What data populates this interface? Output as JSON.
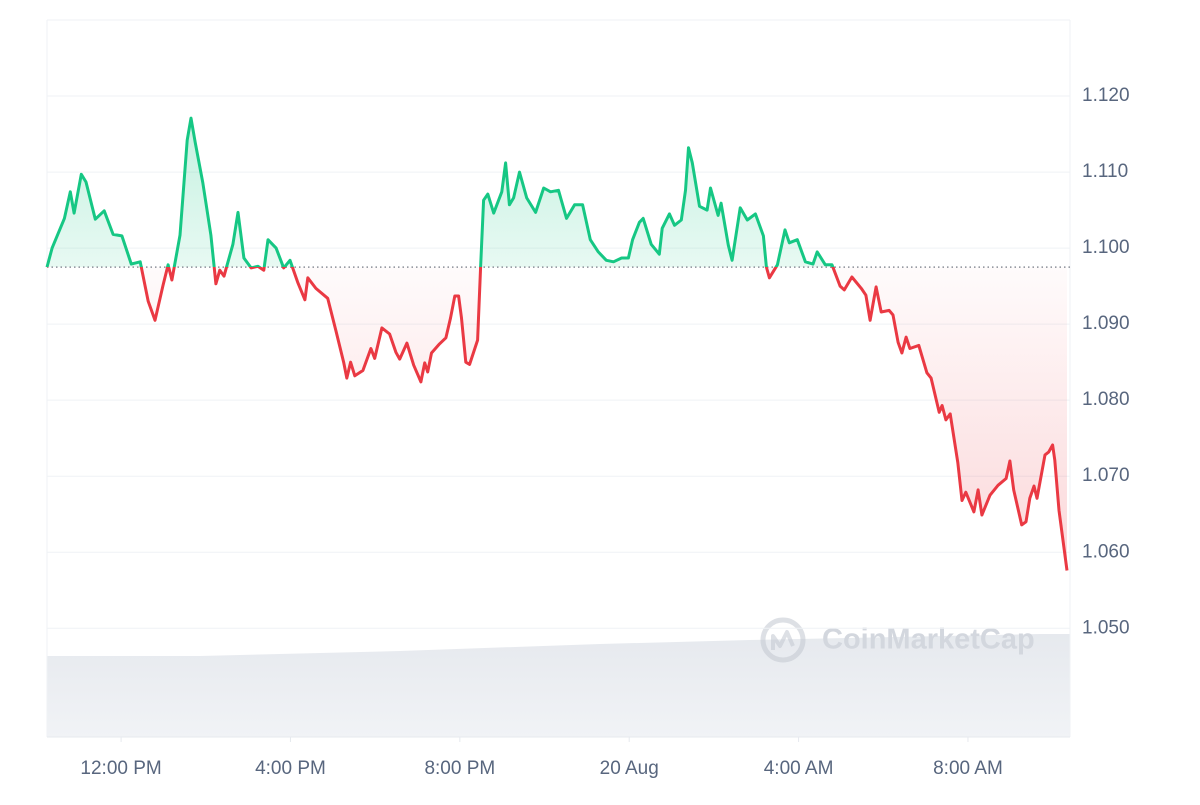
{
  "chart_data": {
    "type": "line",
    "watermark": "CoinMarketCap",
    "x": [
      -1.75,
      -1.63,
      -1.34,
      -1.2,
      -1.11,
      -0.94,
      -0.83,
      -0.61,
      -0.4,
      -0.19,
      0.02,
      0.24,
      0.45,
      0.64,
      0.8,
      0.99,
      1.11,
      1.2,
      1.39,
      1.56,
      1.65,
      1.75,
      1.93,
      2.12,
      2.24,
      2.33,
      2.43,
      2.64,
      2.76,
      2.9,
      3.07,
      3.23,
      3.37,
      3.47,
      3.66,
      3.84,
      3.99,
      4.17,
      4.34,
      4.41,
      4.6,
      4.88,
      5.07,
      5.26,
      5.33,
      5.42,
      5.52,
      5.71,
      5.9,
      5.99,
      6.16,
      6.34,
      6.49,
      6.58,
      6.75,
      6.91,
      7.08,
      7.17,
      7.24,
      7.33,
      7.52,
      7.67,
      7.78,
      7.88,
      7.97,
      8.04,
      8.14,
      8.23,
      8.42,
      8.49,
      8.56,
      8.66,
      8.8,
      8.99,
      9.08,
      9.17,
      9.27,
      9.41,
      9.58,
      9.79,
      9.98,
      10.14,
      10.33,
      10.52,
      10.71,
      10.9,
      11.08,
      11.27,
      11.46,
      11.63,
      11.82,
      11.98,
      12.08,
      12.24,
      12.33,
      12.52,
      12.71,
      12.78,
      12.95,
      13.07,
      13.23,
      13.33,
      13.4,
      13.49,
      13.66,
      13.84,
      13.92,
      14.1,
      14.17,
      14.34,
      14.43,
      14.62,
      14.79,
      14.98,
      15.17,
      15.24,
      15.31,
      15.5,
      15.68,
      15.78,
      15.97,
      16.16,
      16.34,
      16.44,
      16.63,
      16.79,
      16.98,
      17.08,
      17.26,
      17.48,
      17.59,
      17.69,
      17.83,
      17.95,
      18.14,
      18.23,
      18.35,
      18.44,
      18.54,
      18.63,
      18.84,
      19.03,
      19.13,
      19.32,
      19.39,
      19.48,
      19.58,
      19.76,
      19.86,
      19.95,
      20.14,
      20.24,
      20.33,
      20.52,
      20.71,
      20.9,
      20.99,
      21.08,
      21.27,
      21.37,
      21.46,
      21.56,
      21.63,
      21.82,
      21.91,
      22.0,
      22.05,
      22.15,
      22.34
    ],
    "values": [
      1.0975,
      1.1,
      1.1039,
      1.1074,
      1.1046,
      1.1097,
      1.1087,
      1.1038,
      1.1049,
      1.1018,
      1.1016,
      1.0979,
      1.0982,
      1.093,
      1.0905,
      1.0951,
      1.0978,
      1.0958,
      1.1017,
      1.1142,
      1.1171,
      1.1139,
      1.1086,
      1.1017,
      1.0953,
      1.0971,
      1.0963,
      1.1005,
      1.1047,
      1.0987,
      1.0974,
      1.0976,
      1.0971,
      1.1011,
      1.1,
      1.0974,
      1.0984,
      1.0955,
      1.0932,
      1.0961,
      1.0947,
      1.0934,
      1.0892,
      1.0849,
      1.0829,
      1.085,
      1.0832,
      1.0839,
      1.0868,
      1.0855,
      1.0895,
      1.0887,
      1.0863,
      1.0854,
      1.0875,
      1.0846,
      1.0824,
      1.0849,
      1.0837,
      1.0862,
      1.0874,
      1.0882,
      1.0908,
      1.0937,
      1.0937,
      1.0908,
      1.085,
      1.0847,
      1.0879,
      1.0975,
      1.1063,
      1.1071,
      1.1046,
      1.1074,
      1.1112,
      1.1057,
      1.1066,
      1.11,
      1.1066,
      1.1047,
      1.1079,
      1.1074,
      1.1076,
      1.1039,
      1.1057,
      1.1057,
      1.1011,
      1.0995,
      1.0984,
      1.0982,
      1.0987,
      1.0987,
      1.1011,
      1.1034,
      1.1039,
      1.1005,
      1.0992,
      1.1026,
      1.1045,
      1.103,
      1.1037,
      1.1076,
      1.1132,
      1.1112,
      1.1055,
      1.105,
      1.1079,
      1.1043,
      1.1059,
      1.1004,
      1.0984,
      1.1053,
      1.1037,
      1.1045,
      1.1016,
      1.0975,
      1.0961,
      1.0978,
      1.1024,
      1.1007,
      1.1011,
      1.0982,
      1.0979,
      1.0995,
      1.0978,
      1.0978,
      1.095,
      1.0945,
      1.0962,
      1.0947,
      1.0938,
      1.0905,
      1.0949,
      1.0916,
      1.0918,
      1.0912,
      1.0876,
      1.0862,
      1.0883,
      1.0868,
      1.0872,
      1.0836,
      1.0829,
      1.0784,
      1.0793,
      1.0774,
      1.0782,
      1.0718,
      1.0668,
      1.0679,
      1.0653,
      1.0682,
      1.0649,
      1.0675,
      1.0688,
      1.0697,
      1.072,
      1.0682,
      1.0636,
      1.064,
      1.0671,
      1.0687,
      1.0671,
      1.0728,
      1.0732,
      1.0741,
      1.0721,
      1.0655,
      1.0576
    ],
    "baseline": 1.0975,
    "up_color": "#16c784",
    "down_color": "#ea3943",
    "xlim": [
      -1.75,
      22.41
    ],
    "ylim": [
      1.0357,
      1.13
    ],
    "xticks": [
      {
        "value": 0,
        "label": "12:00 PM"
      },
      {
        "value": 4,
        "label": "4:00 PM"
      },
      {
        "value": 8,
        "label": "8:00 PM"
      },
      {
        "value": 12,
        "label": "20 Aug"
      },
      {
        "value": 16,
        "label": "4:00 AM"
      },
      {
        "value": 20,
        "label": "8:00 AM"
      }
    ],
    "yticks": [
      {
        "value": 1.05,
        "label": "1.050"
      },
      {
        "value": 1.06,
        "label": "1.060"
      },
      {
        "value": 1.07,
        "label": "1.070"
      },
      {
        "value": 1.08,
        "label": "1.080"
      },
      {
        "value": 1.09,
        "label": "1.090"
      },
      {
        "value": 1.1,
        "label": "1.100"
      },
      {
        "value": 1.11,
        "label": "1.110"
      },
      {
        "value": 1.12,
        "label": "1.120"
      }
    ],
    "grid": true
  }
}
